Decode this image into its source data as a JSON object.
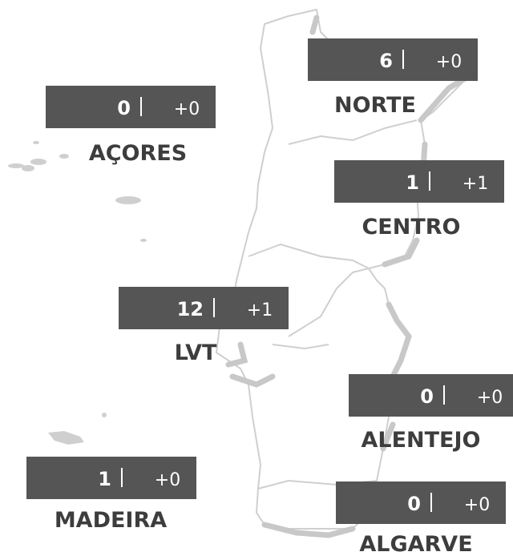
{
  "regions": [
    {
      "name": "NORTE",
      "count": 6,
      "change": "+0"
    },
    {
      "name": "AÇORES",
      "count": 0,
      "change": "+0"
    },
    {
      "name": "CENTRO",
      "count": 1,
      "change": "+1"
    },
    {
      "name": "LVT",
      "count": 12,
      "change": "+1"
    },
    {
      "name": "ALENTEJO",
      "count": 0,
      "change": "+0"
    },
    {
      "name": "MADEIRA",
      "count": 1,
      "change": "+0"
    },
    {
      "name": "ALGARVE",
      "count": 0,
      "change": "+0"
    }
  ]
}
